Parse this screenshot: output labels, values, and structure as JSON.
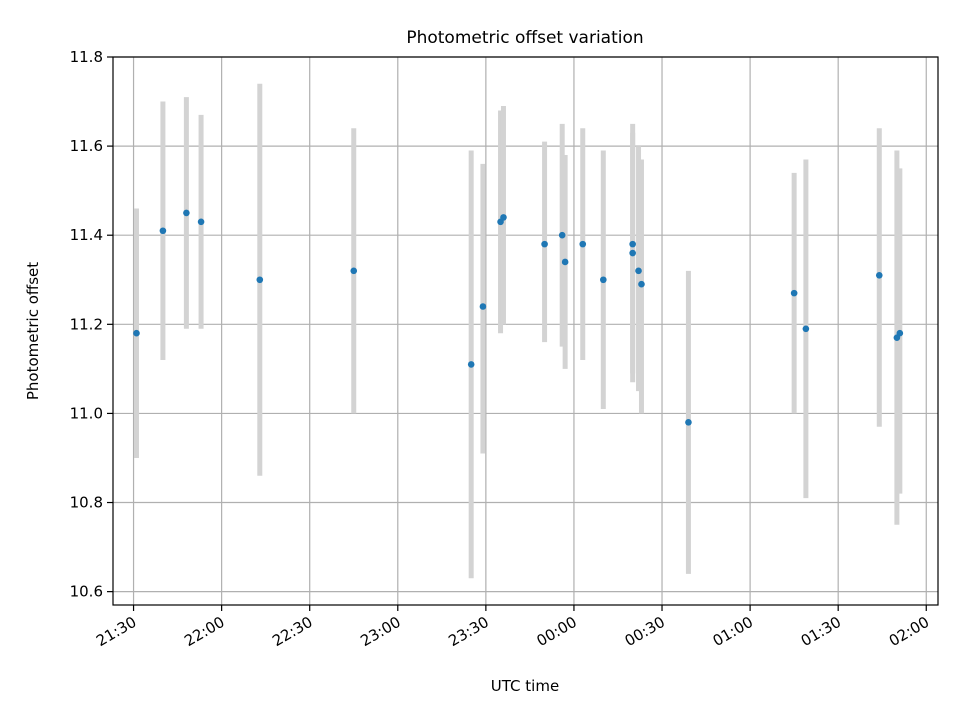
{
  "chart_data": {
    "type": "scatter",
    "title": "Photometric offset variation",
    "xlabel": "UTC time",
    "ylabel": "Photometric offset",
    "xlim": [
      "21:23",
      "02:04"
    ],
    "ylim": [
      10.57,
      11.8
    ],
    "x_ticks": [
      "21:30",
      "22:00",
      "22:30",
      "23:00",
      "23:30",
      "00:00",
      "00:30",
      "01:00",
      "01:30",
      "02:00"
    ],
    "y_ticks": [
      "10.6",
      "10.8",
      "11.0",
      "11.2",
      "11.4",
      "11.6",
      "11.8"
    ],
    "grid": true,
    "marker_color": "#1f77b4",
    "errorbar_color": "#d3d3d3",
    "series": [
      {
        "points": [
          {
            "t": "21:31",
            "y": 11.18,
            "lo": 10.9,
            "hi": 11.46
          },
          {
            "t": "21:40",
            "y": 11.41,
            "lo": 11.12,
            "hi": 11.7
          },
          {
            "t": "21:48",
            "y": 11.45,
            "lo": 11.19,
            "hi": 11.71
          },
          {
            "t": "21:53",
            "y": 11.43,
            "lo": 11.19,
            "hi": 11.67
          },
          {
            "t": "22:13",
            "y": 11.3,
            "lo": 10.86,
            "hi": 11.74
          },
          {
            "t": "22:45",
            "y": 11.32,
            "lo": 11.0,
            "hi": 11.64
          },
          {
            "t": "23:25",
            "y": 11.11,
            "lo": 10.63,
            "hi": 11.59
          },
          {
            "t": "23:29",
            "y": 11.24,
            "lo": 10.91,
            "hi": 11.56
          },
          {
            "t": "23:35",
            "y": 11.43,
            "lo": 11.18,
            "hi": 11.68
          },
          {
            "t": "23:36",
            "y": 11.44,
            "lo": 11.2,
            "hi": 11.69
          },
          {
            "t": "23:50",
            "y": 11.38,
            "lo": 11.16,
            "hi": 11.61
          },
          {
            "t": "23:56",
            "y": 11.4,
            "lo": 11.15,
            "hi": 11.65
          },
          {
            "t": "23:57",
            "y": 11.34,
            "lo": 11.1,
            "hi": 11.58
          },
          {
            "t": "00:03",
            "y": 11.38,
            "lo": 11.12,
            "hi": 11.64
          },
          {
            "t": "00:10",
            "y": 11.3,
            "lo": 11.01,
            "hi": 11.59
          },
          {
            "t": "00:20",
            "y": 11.38,
            "lo": 11.09,
            "hi": 11.65
          },
          {
            "t": "00:20",
            "y": 11.36,
            "lo": 11.07,
            "hi": 11.63
          },
          {
            "t": "00:22",
            "y": 11.32,
            "lo": 11.05,
            "hi": 11.6
          },
          {
            "t": "00:23",
            "y": 11.29,
            "lo": 11.0,
            "hi": 11.57
          },
          {
            "t": "00:39",
            "y": 10.98,
            "lo": 10.64,
            "hi": 11.32
          },
          {
            "t": "01:15",
            "y": 11.27,
            "lo": 11.0,
            "hi": 11.54
          },
          {
            "t": "01:19",
            "y": 11.19,
            "lo": 10.81,
            "hi": 11.57
          },
          {
            "t": "01:44",
            "y": 11.31,
            "lo": 10.97,
            "hi": 11.64
          },
          {
            "t": "01:50",
            "y": 11.17,
            "lo": 10.75,
            "hi": 11.59
          },
          {
            "t": "01:51",
            "y": 11.18,
            "lo": 10.82,
            "hi": 11.55
          }
        ]
      }
    ]
  }
}
